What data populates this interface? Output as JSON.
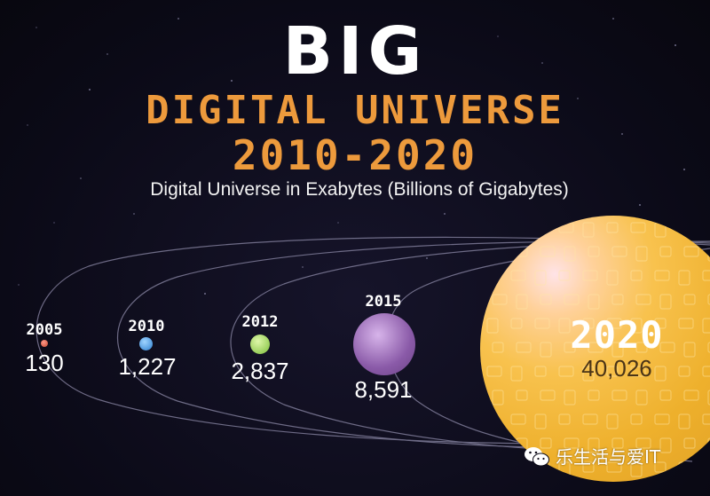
{
  "header": {
    "title_big": "BIG",
    "title_line1": "DIGITAL UNIVERSE",
    "title_line2": "2010-2020",
    "subtitle": "Digital Universe in Exabytes (Billions of Gigabytes)"
  },
  "planets": [
    {
      "year": "2005",
      "value": "130",
      "color": "#e0533a"
    },
    {
      "year": "2010",
      "value": "1,227",
      "color": "#3a8fe0"
    },
    {
      "year": "2012",
      "value": "2,837",
      "color": "#8ccc47"
    },
    {
      "year": "2015",
      "value": "8,591",
      "color": "#9a6bb8"
    },
    {
      "year": "2020",
      "value": "40,026",
      "color": "#f2b93a"
    }
  ],
  "colors": {
    "background": "#0d0b19",
    "accent_orange": "#ed9a3c",
    "orbit_line": "#8d8aa8"
  },
  "watermark": {
    "icon": "wechat-icon",
    "text": "乐生活与爱IT"
  }
}
